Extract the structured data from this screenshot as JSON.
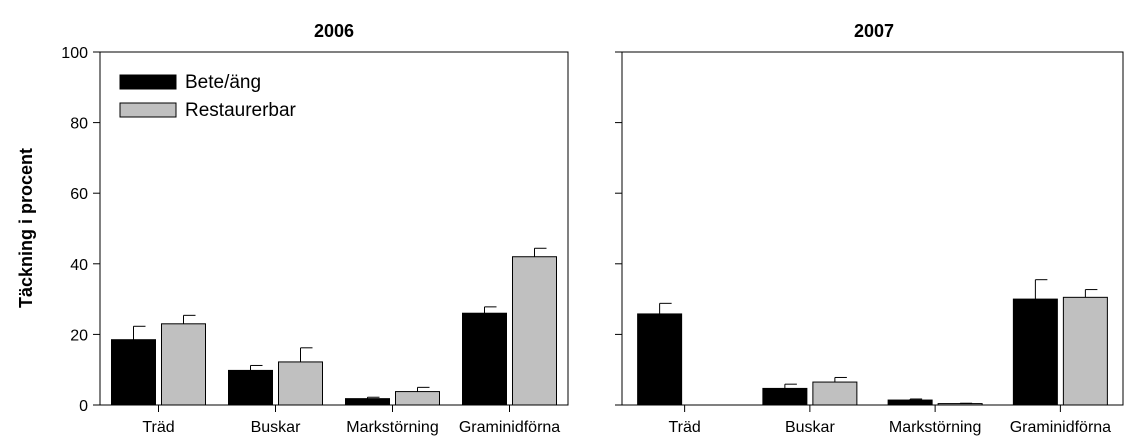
{
  "chart_data": [
    {
      "type": "bar",
      "title": "2006",
      "xlabel": "",
      "ylabel": "Täckning i procent",
      "ylim": [
        0,
        100
      ],
      "yticks": [
        0,
        20,
        40,
        60,
        80,
        100
      ],
      "categories": [
        "Träd",
        "Buskar",
        "Markstörning",
        "Graminidförna"
      ],
      "series": [
        {
          "name": "Bete/äng",
          "color": "#000000",
          "values": [
            18.5,
            9.8,
            1.8,
            26.0
          ],
          "errors": [
            3.8,
            1.4,
            0.4,
            1.8
          ]
        },
        {
          "name": "Restaurerbar",
          "color": "#c0c0c0",
          "values": [
            23.0,
            12.2,
            3.8,
            42.0
          ],
          "errors": [
            2.4,
            4.0,
            1.2,
            2.4
          ]
        }
      ],
      "legend": "top-left",
      "grid": false
    },
    {
      "type": "bar",
      "title": "2007",
      "xlabel": "",
      "ylim": [
        0,
        100
      ],
      "categories": [
        "Träd",
        "Buskar",
        "Markstörning",
        "Graminidförna"
      ],
      "series": [
        {
          "name": "Bete/äng",
          "color": "#000000",
          "values": [
            25.8,
            4.7,
            1.4,
            30.0
          ],
          "errors": [
            3.0,
            1.2,
            0.3,
            5.5
          ]
        },
        {
          "name": "Restaurerbar",
          "color": "#c0c0c0",
          "values": [
            0.0,
            6.5,
            0.4,
            30.5
          ],
          "errors": [
            0.0,
            1.3,
            0.1,
            2.2
          ]
        }
      ],
      "grid": false
    }
  ]
}
